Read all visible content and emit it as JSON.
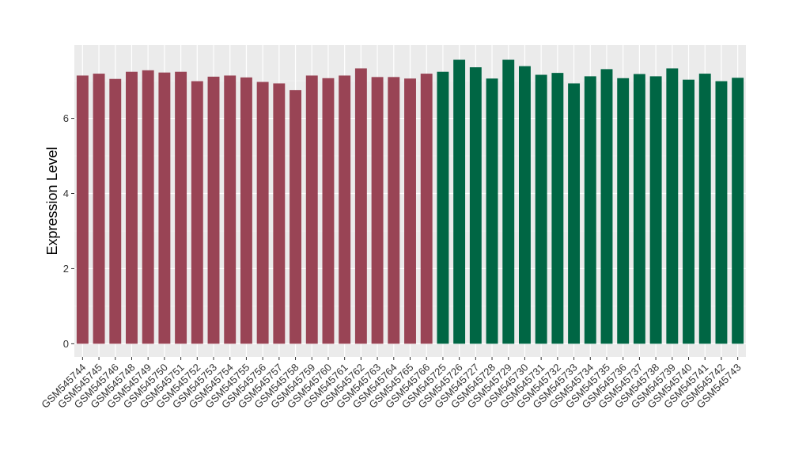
{
  "chart_data": {
    "type": "bar",
    "ylabel": "Expression Level",
    "xlabel": "",
    "ylim": [
      -0.35,
      7.95
    ],
    "yticks": [
      0,
      2,
      4,
      6
    ],
    "grid": true,
    "background": "#ebebeb",
    "categories": [
      "GSM545744",
      "GSM545745",
      "GSM545746",
      "GSM545748",
      "GSM545749",
      "GSM545750",
      "GSM545751",
      "GSM545752",
      "GSM545753",
      "GSM545754",
      "GSM545755",
      "GSM545756",
      "GSM545757",
      "GSM545758",
      "GSM545759",
      "GSM545760",
      "GSM545761",
      "GSM545762",
      "GSM545763",
      "GSM545764",
      "GSM545765",
      "GSM545766",
      "GSM545725",
      "GSM545726",
      "GSM545727",
      "GSM545728",
      "GSM545729",
      "GSM545730",
      "GSM545731",
      "GSM545732",
      "GSM545733",
      "GSM545734",
      "GSM545735",
      "GSM545736",
      "GSM545737",
      "GSM545738",
      "GSM545739",
      "GSM545740",
      "GSM545741",
      "GSM545742",
      "GSM545743"
    ],
    "values": [
      7.14,
      7.19,
      7.05,
      7.24,
      7.28,
      7.22,
      7.24,
      6.99,
      7.11,
      7.14,
      7.09,
      6.97,
      6.93,
      6.75,
      7.14,
      7.07,
      7.14,
      7.33,
      7.1,
      7.1,
      7.06,
      7.19,
      7.24,
      7.56,
      7.36,
      7.06,
      7.56,
      7.39,
      7.16,
      7.21,
      6.93,
      7.12,
      7.31,
      7.07,
      7.18,
      7.12,
      7.33,
      7.03,
      7.19,
      6.99,
      7.08
    ],
    "groups": [
      {
        "count": 22,
        "color": "#994455"
      },
      {
        "count": 19,
        "color": "#006644"
      }
    ]
  }
}
